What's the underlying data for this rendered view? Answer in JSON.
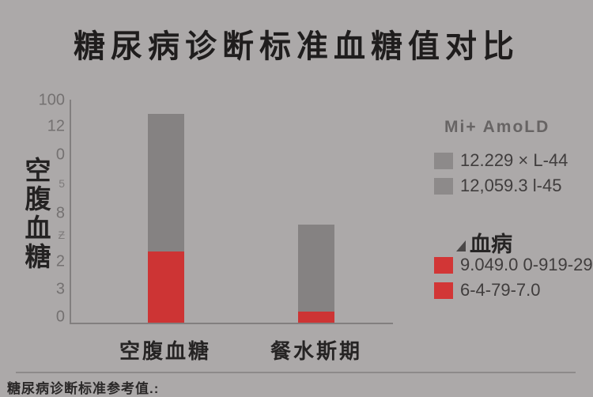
{
  "title": "糖尿病诊断标准血糖值对比",
  "y_axis": {
    "label": "空腹血糖",
    "ticks": [
      {
        "label": "100"
      },
      {
        "label": "12"
      },
      {
        "label": "0"
      },
      {
        "label": "5"
      },
      {
        "label": "8"
      },
      {
        "label": "Ƶ"
      },
      {
        "label": "2"
      },
      {
        "label": "3"
      },
      {
        "label": "0"
      }
    ]
  },
  "x_axis": {
    "categories": [
      "空腹血糖",
      "餐水斯期"
    ]
  },
  "legend": {
    "group1": {
      "header": "Mi+ AmoLD",
      "items": [
        "12.229 × L-44",
        "12,059.3 l-45"
      ]
    },
    "group2": {
      "header": "血病",
      "items": [
        "9.049.0 0-919-29",
        "6-4-79-7.0"
      ]
    }
  },
  "footer": "糖尿病诊断标准参考值.:",
  "colors": {
    "background": "#aca9a9",
    "bar_gray": "#858282",
    "bar_red": "#cd3434",
    "legend_swatch_gray": "#8d8a8a",
    "legend_swatch_red": "#d23636",
    "axis": "#827f7f",
    "title_text": "#1f1d1d"
  },
  "chart_data": {
    "type": "bar",
    "stacked": true,
    "title": "糖尿病诊断标准血糖值对比",
    "categories": [
      "空腹血糖",
      "餐水斯期"
    ],
    "series": [
      {
        "name": "Mi+ AmoLD (gray segment)",
        "color": "#858282",
        "values": [
          62,
          39
        ]
      },
      {
        "name": "血病 (red segment)",
        "color": "#cd3434",
        "values": [
          32,
          5
        ]
      }
    ],
    "ylabel": "空腹血糖",
    "ylim": [
      0,
      100
    ],
    "legend_position": "right",
    "grid": false
  }
}
